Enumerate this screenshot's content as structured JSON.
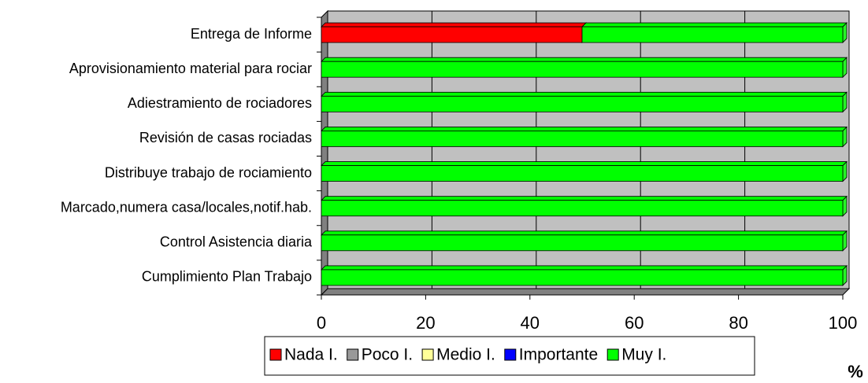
{
  "chart_data": {
    "type": "bar",
    "orientation": "horizontal",
    "stacked": true,
    "three_d": true,
    "categories": [
      "Entrega de Informe",
      "Aprovisionamiento material para rociar",
      "Adiestramiento de rociadores",
      "Revisión de casas rociadas",
      "Distribuye trabajo de rociamiento",
      "Marcado,numera casa/locales,notif.hab.",
      "Control Asistencia diaria",
      "Cumplimiento Plan Trabajo"
    ],
    "series": [
      {
        "name": "Nada I.",
        "color": "#ff0000",
        "values": [
          50,
          0,
          0,
          0,
          0,
          0,
          0,
          0
        ]
      },
      {
        "name": "Poco I.",
        "color": "#999999",
        "values": [
          0,
          0,
          0,
          0,
          0,
          0,
          0,
          0
        ]
      },
      {
        "name": "Medio I.",
        "color": "#ffff99",
        "values": [
          0,
          0,
          0,
          0,
          0,
          0,
          0,
          0
        ]
      },
      {
        "name": "Importante",
        "color": "#0000ff",
        "values": [
          0,
          0,
          0,
          0,
          0,
          0,
          0,
          0
        ]
      },
      {
        "name": "Muy I.",
        "color": "#00ff00",
        "values": [
          50,
          100,
          100,
          100,
          100,
          100,
          100,
          100
        ]
      }
    ],
    "xlim": [
      0,
      100
    ],
    "xticks": [
      0,
      20,
      40,
      60,
      80,
      100
    ],
    "x_label": "%",
    "grid": true,
    "legend": "bottom"
  }
}
